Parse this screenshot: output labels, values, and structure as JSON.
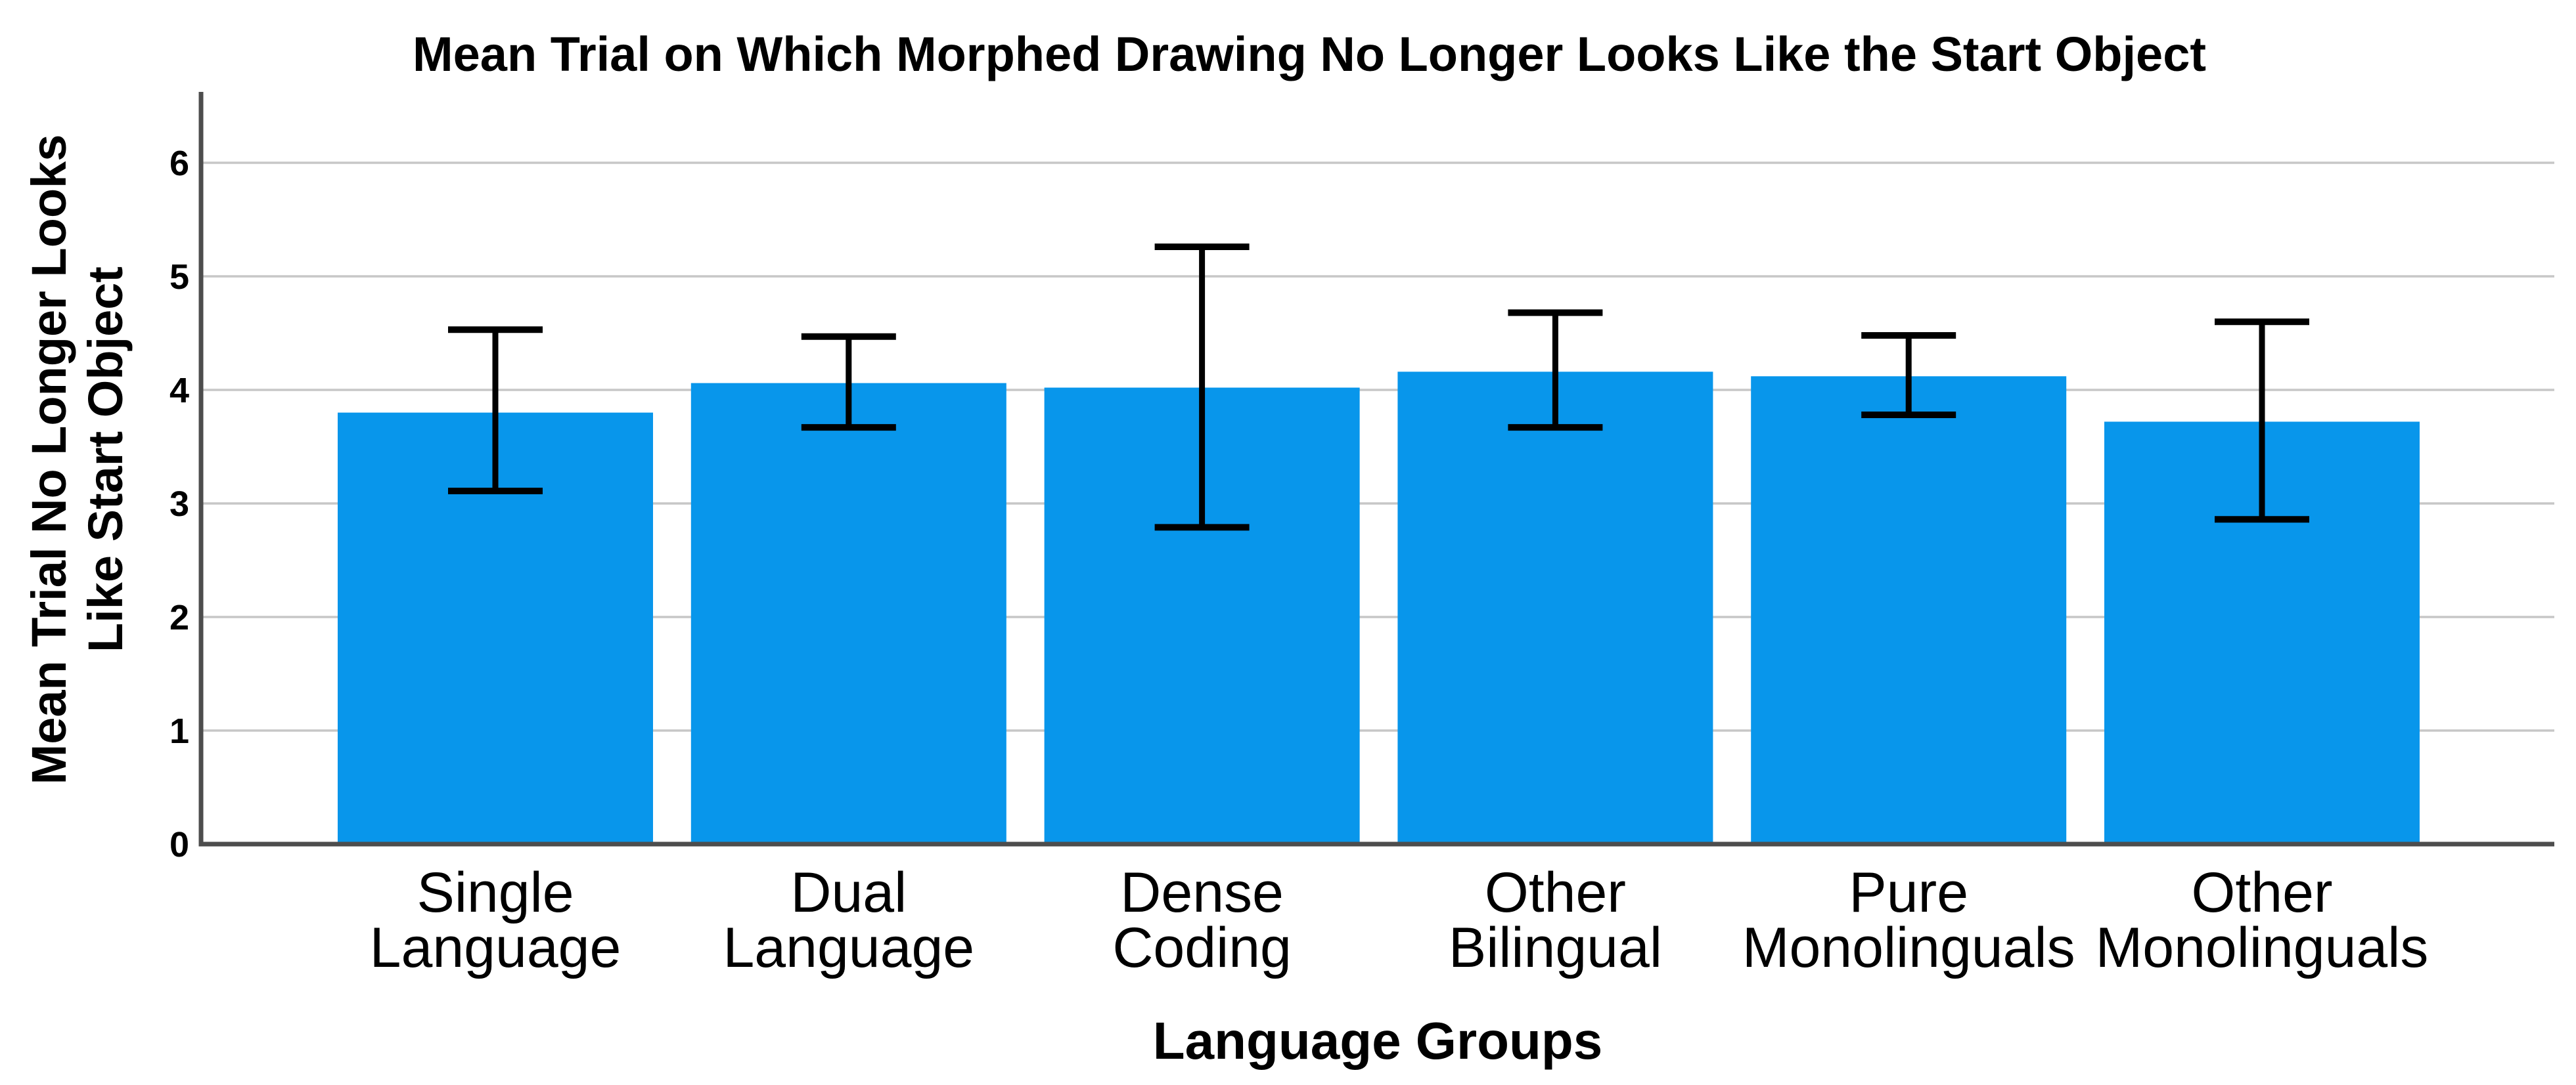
{
  "chart_data": {
    "type": "bar",
    "title": "Mean Trial on Which Morphed Drawing No Longer Looks Like the Start Object",
    "xlabel": "Language Groups",
    "ylabel": "Mean Trial No Longer Looks Like Start Object",
    "ylabel_lines": [
      "Mean Trial No Longer Looks",
      "Like Start Object"
    ],
    "categories": [
      "Single Language",
      "Dual Language",
      "Dense Coding",
      "Other Bilingual",
      "Pure Monolinguals",
      "Other Monolinguals"
    ],
    "category_lines": [
      [
        "Single",
        "Language"
      ],
      [
        "Dual",
        "Language"
      ],
      [
        "Dense",
        "Coding"
      ],
      [
        "Other",
        "Bilingual"
      ],
      [
        "Pure",
        "Monolinguals"
      ],
      [
        "Other",
        "Monolinguals"
      ]
    ],
    "series": [
      {
        "name": "Mean trial",
        "values": [
          3.8,
          4.06,
          4.02,
          4.16,
          4.12,
          3.72
        ],
        "error_low": [
          3.11,
          3.67,
          2.79,
          3.67,
          3.78,
          2.86
        ],
        "error_high": [
          4.53,
          4.47,
          5.26,
          4.68,
          4.48,
          4.6
        ]
      }
    ],
    "y_ticks": [
      0,
      1,
      2,
      3,
      4,
      5,
      6
    ],
    "ylim": [
      0,
      6.6
    ],
    "grid": "horizontal",
    "legend_position": "none",
    "bar_color": "#0896EB",
    "error_color": "#000000",
    "gridline_color": "#C7C7C7",
    "axis_color": "#4D4D4D",
    "text_color": "#000000",
    "background_color": "#FFFFFF"
  }
}
